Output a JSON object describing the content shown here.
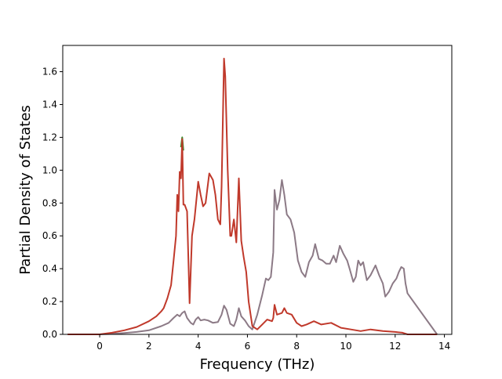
{
  "chart_data": {
    "type": "line",
    "title": "",
    "xlabel": "Frequency (THz)",
    "ylabel": "Partial Density of States",
    "xlim": [
      -1.5,
      14.3
    ],
    "ylim": [
      0,
      1.76
    ],
    "xticks": [
      0,
      2,
      4,
      6,
      8,
      10,
      12,
      14
    ],
    "yticks": [
      0.0,
      0.2,
      0.4,
      0.6,
      0.8,
      1.0,
      1.2,
      1.4,
      1.6
    ],
    "xtick_labels": [
      "0",
      "2",
      "4",
      "6",
      "8",
      "10",
      "12",
      "14"
    ],
    "ytick_labels": [
      "0.0",
      "0.2",
      "0.4",
      "0.6",
      "0.8",
      "1.0",
      "1.2",
      "1.4",
      "1.6"
    ],
    "grid": false,
    "legend": "none",
    "series": [
      {
        "color": "#8c7a86",
        "x": [
          -1.3,
          0.0,
          0.5,
          1.0,
          1.5,
          2.0,
          2.5,
          2.8,
          3.0,
          3.15,
          3.25,
          3.35,
          3.45,
          3.55,
          3.7,
          3.8,
          3.9,
          4.0,
          4.1,
          4.25,
          4.4,
          4.6,
          4.8,
          4.95,
          5.05,
          5.15,
          5.3,
          5.45,
          5.55,
          5.65,
          5.75,
          5.9,
          6.05,
          6.2,
          6.4,
          6.6,
          6.75,
          6.85,
          6.95,
          7.05,
          7.1,
          7.2,
          7.3,
          7.4,
          7.5,
          7.6,
          7.75,
          7.9,
          8.05,
          8.2,
          8.35,
          8.5,
          8.65,
          8.75,
          8.9,
          9.05,
          9.2,
          9.35,
          9.5,
          9.6,
          9.75,
          9.9,
          10.05,
          10.15,
          10.3,
          10.4,
          10.5,
          10.6,
          10.7,
          10.85,
          11.0,
          11.2,
          11.35,
          11.5,
          11.6,
          11.75,
          11.9,
          12.05,
          12.15,
          12.25,
          12.35,
          12.42,
          12.5,
          13.7
        ],
        "y": [
          0.0,
          0.0,
          0.003,
          0.008,
          0.015,
          0.025,
          0.05,
          0.07,
          0.1,
          0.12,
          0.11,
          0.13,
          0.14,
          0.1,
          0.07,
          0.06,
          0.09,
          0.105,
          0.085,
          0.09,
          0.085,
          0.07,
          0.075,
          0.12,
          0.175,
          0.15,
          0.065,
          0.05,
          0.09,
          0.16,
          0.11,
          0.085,
          0.05,
          0.03,
          0.12,
          0.24,
          0.34,
          0.33,
          0.35,
          0.5,
          0.88,
          0.76,
          0.82,
          0.94,
          0.85,
          0.73,
          0.7,
          0.62,
          0.45,
          0.38,
          0.35,
          0.44,
          0.48,
          0.55,
          0.46,
          0.45,
          0.43,
          0.43,
          0.48,
          0.44,
          0.54,
          0.49,
          0.45,
          0.4,
          0.32,
          0.35,
          0.45,
          0.42,
          0.44,
          0.33,
          0.36,
          0.42,
          0.36,
          0.31,
          0.23,
          0.26,
          0.31,
          0.34,
          0.38,
          0.41,
          0.4,
          0.31,
          0.25,
          0.0
        ]
      },
      {
        "color": "#3a8a2a",
        "x": [
          3.3,
          3.35,
          3.4
        ],
        "y": [
          1.14,
          1.2,
          1.12
        ]
      },
      {
        "color": "#c0392b",
        "x": [
          -1.3,
          0.0,
          0.5,
          1.0,
          1.5,
          2.0,
          2.3,
          2.5,
          2.6,
          2.75,
          2.9,
          3.0,
          3.1,
          3.15,
          3.2,
          3.25,
          3.3,
          3.35,
          3.4,
          3.45,
          3.55,
          3.65,
          3.75,
          3.85,
          4.0,
          4.1,
          4.2,
          4.3,
          4.45,
          4.6,
          4.7,
          4.8,
          4.9,
          4.95,
          5.05,
          5.1,
          5.2,
          5.3,
          5.35,
          5.45,
          5.55,
          5.65,
          5.75,
          5.85,
          5.95,
          6.05,
          6.2,
          6.4,
          6.6,
          6.8,
          7.0,
          7.05,
          7.1,
          7.2,
          7.4,
          7.5,
          7.6,
          7.8,
          8.0,
          8.2,
          8.4,
          8.7,
          9.0,
          9.4,
          9.8,
          10.2,
          10.6,
          11.0,
          11.5,
          12.0,
          12.3,
          12.5,
          13.7
        ],
        "y": [
          0.0,
          0.0,
          0.01,
          0.025,
          0.045,
          0.08,
          0.11,
          0.14,
          0.16,
          0.22,
          0.3,
          0.45,
          0.6,
          0.85,
          0.75,
          0.99,
          0.95,
          1.19,
          0.79,
          0.79,
          0.75,
          0.19,
          0.6,
          0.7,
          0.93,
          0.85,
          0.78,
          0.8,
          0.98,
          0.94,
          0.85,
          0.7,
          0.67,
          0.9,
          1.68,
          1.57,
          1.0,
          0.6,
          0.6,
          0.7,
          0.56,
          0.95,
          0.57,
          0.47,
          0.38,
          0.2,
          0.05,
          0.03,
          0.06,
          0.09,
          0.08,
          0.1,
          0.18,
          0.12,
          0.13,
          0.16,
          0.13,
          0.12,
          0.07,
          0.05,
          0.06,
          0.08,
          0.06,
          0.07,
          0.04,
          0.03,
          0.02,
          0.03,
          0.02,
          0.015,
          0.01,
          0.0,
          0.0
        ]
      }
    ]
  }
}
